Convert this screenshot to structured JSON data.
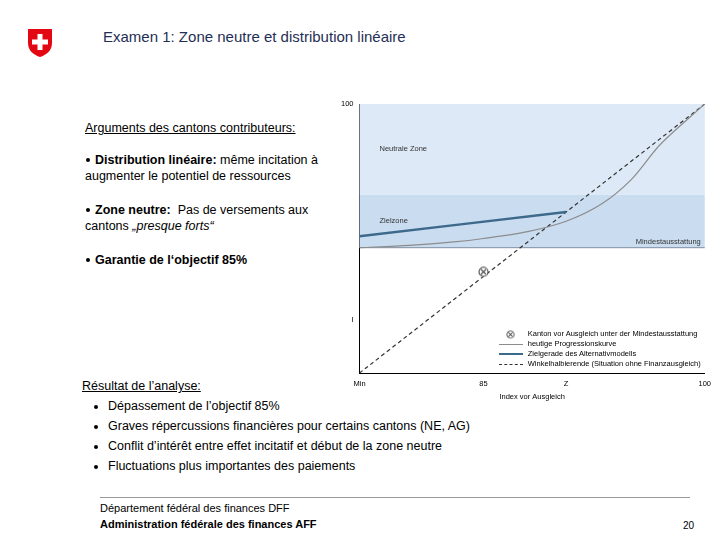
{
  "slide": {
    "title": "Examen 1: Zone neutre et distribution linéaire",
    "arguments_heading": "Arguments des cantons contributeurs:",
    "arguments": [
      {
        "label": "Distribution linéaire:",
        "segments": [
          {
            "text": " même incitation à augmenter le potentiel de ressources"
          }
        ]
      },
      {
        "label": "Zone neutre:",
        "segments": [
          {
            "text": "  Pas de versements aux cantons "
          },
          {
            "text": "„presque forts“",
            "style": "italic"
          }
        ]
      },
      {
        "label": "Garantie de l‘objectif 85%",
        "segments": []
      }
    ],
    "result_heading": "Résultat de l’analyse:",
    "results": [
      "Dépassement de l’objectif 85%",
      "Graves répercussions financières pour certains cantons (NE, AG)",
      "Conflit d’intérêt entre effet incitatif et début de la zone neutre",
      "Fluctuations plus importantes des paiements"
    ],
    "footer": {
      "department": "Département fédéral des finances DFF",
      "administration": "Administration fédérale des finances AFF",
      "page": "20"
    }
  },
  "chart_data": {
    "type": "line",
    "x_label": "Index vor Ausgleich",
    "xlim": [
      76.6,
      100
    ],
    "xticks": [
      {
        "value": 76.6,
        "label": "Min"
      },
      85,
      {
        "value": 90.6,
        "label": "Z"
      },
      100
    ],
    "ylim": [
      76.6,
      100
    ],
    "yticks": [
      {
        "value": 81.2,
        "label": "I"
      },
      100
    ],
    "grid": false,
    "legend": "lower right",
    "zones": [
      {
        "name": "Neutrale Zone",
        "from": 92.1,
        "to": 100,
        "color": "#dde9f6"
      },
      {
        "name": "Zielzone",
        "from": 87.5,
        "to": 92.1,
        "color": "#c9dcf0"
      }
    ],
    "reference_lines": [
      {
        "name": "Mindestausstattung",
        "y": 87.5,
        "color": "#7f8fa3"
      }
    ],
    "series": [
      {
        "name": "Kanton vor Ausgleich unter der Mindestausstattung",
        "type": "scatter",
        "marker": "circle-x",
        "color": "#555555",
        "x": [
          85
        ],
        "values": [
          85.4
        ]
      },
      {
        "name": "heutige Progressionskurve",
        "color": "#8c8c8c",
        "line_style": "solid",
        "x": [
          76.6,
          80,
          83,
          85,
          88,
          90.6,
          93,
          95,
          97,
          100
        ],
        "values": [
          87.5,
          87.7,
          88.0,
          88.3,
          88.9,
          89.8,
          91.3,
          93.4,
          96.5,
          100
        ]
      },
      {
        "name": "Zielgerade des Alternativmodells",
        "color": "#3d6a8a",
        "line_style": "solid",
        "x": [
          76.6,
          90.6
        ],
        "values": [
          88.5,
          90.6
        ]
      },
      {
        "name": "Winkelhalbierende (Situation ohne Finanzausgleich)",
        "color": "#333333",
        "line_style": "dashed",
        "x": [
          76.6,
          100
        ],
        "values": [
          76.6,
          100
        ]
      }
    ]
  }
}
